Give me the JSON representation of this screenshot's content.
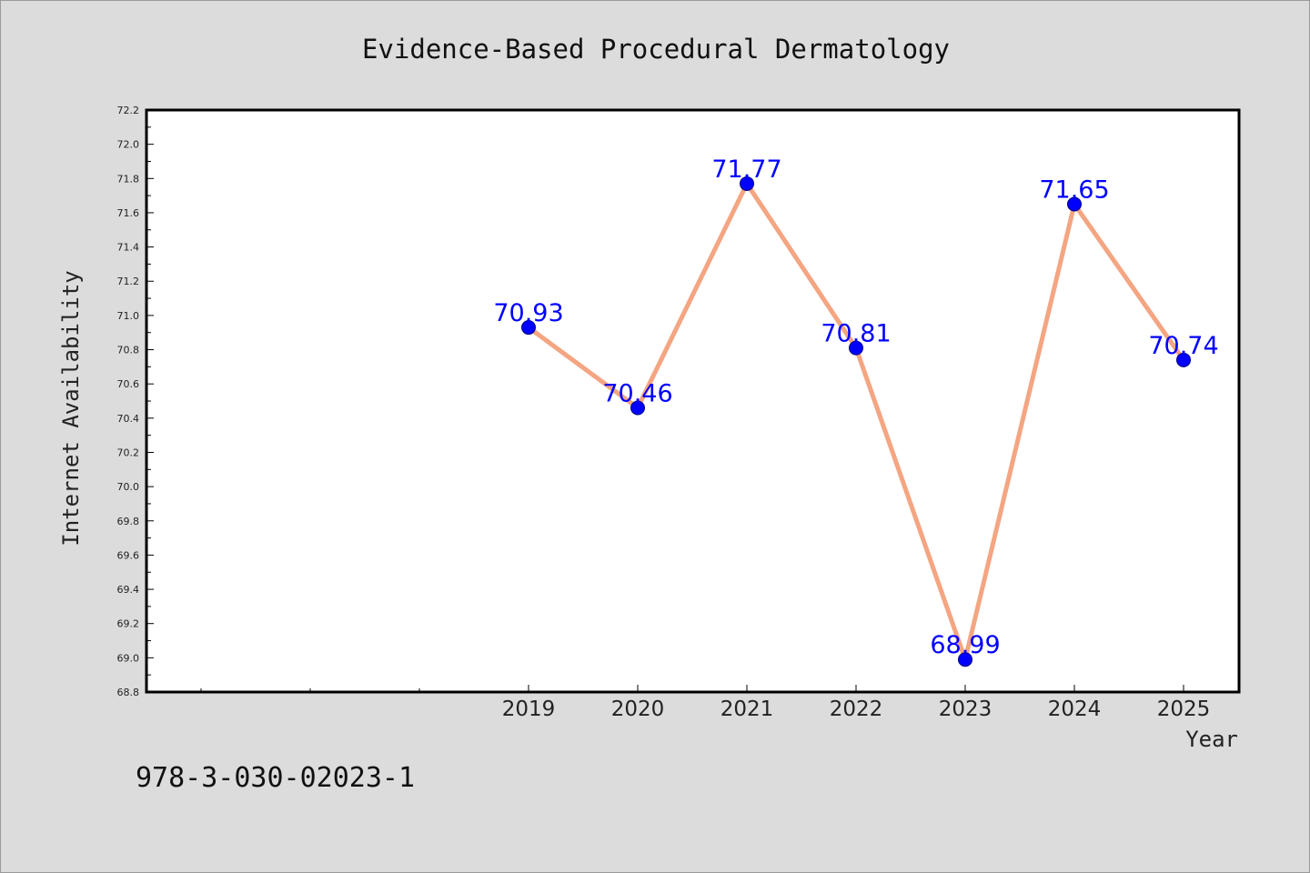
{
  "chart_data": {
    "type": "line",
    "title": "Evidence-Based Procedural Dermatology",
    "xlabel": "Year",
    "ylabel": "Internet Availability",
    "categories": [
      "2019",
      "2020",
      "2021",
      "2022",
      "2023",
      "2024",
      "2025"
    ],
    "series": [
      {
        "values": [
          70.93,
          70.46,
          71.77,
          70.81,
          68.99,
          71.65,
          70.74
        ],
        "line_color": "#f4a582",
        "marker_color": "#0000ff"
      }
    ],
    "data_labels": [
      "70.93",
      "70.46",
      "71.77",
      "70.81",
      "68.99",
      "71.65",
      "70.74"
    ],
    "ylim": [
      68.8,
      72.2
    ],
    "yticks": [
      "68.8",
      "69.0",
      "69.2",
      "69.4",
      "69.6",
      "69.8",
      "70.0",
      "70.2",
      "70.4",
      "70.6",
      "70.8",
      "71.0",
      "71.2",
      "71.4",
      "71.6",
      "71.8",
      "72.0",
      "72.2"
    ],
    "x_leading_empty_slots": 3,
    "grid": false,
    "legend": "none"
  },
  "footer": {
    "isbn": "978-3-030-02023-1"
  },
  "colors": {
    "background": "#dcdcdc",
    "plot_area": "#ffffff",
    "axis": "#000000"
  }
}
